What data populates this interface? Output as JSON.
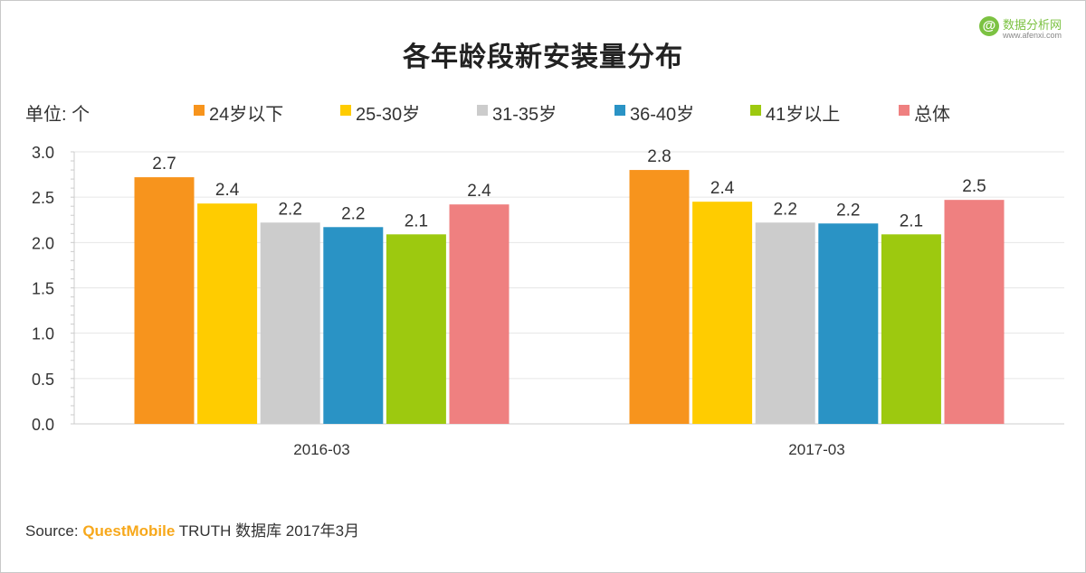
{
  "title": "各年龄段新安装量分布",
  "unit_label": "单位: 个",
  "watermark": {
    "logo_glyph": "@",
    "name": "数据分析网",
    "url": "www.afenxi.com"
  },
  "source": {
    "prefix": "Source:",
    "brand": "QuestMobile",
    "suffix": "TRUTH 数据库 2017年3月"
  },
  "chart_data": {
    "type": "bar",
    "title": "各年龄段新安装量分布",
    "xlabel": "",
    "ylabel": "",
    "categories": [
      "2016-03",
      "2017-03"
    ],
    "series": [
      {
        "name": "24岁以下",
        "color": "#f7941d",
        "values": [
          2.72,
          2.8
        ]
      },
      {
        "name": "25-30岁",
        "color": "#ffcc00",
        "values": [
          2.43,
          2.45
        ]
      },
      {
        "name": "31-35岁",
        "color": "#cccccc",
        "values": [
          2.22,
          2.22
        ]
      },
      {
        "name": "36-40岁",
        "color": "#2a93c5",
        "values": [
          2.17,
          2.21
        ]
      },
      {
        "name": "41岁以上",
        "color": "#9dc90f",
        "values": [
          2.09,
          2.09
        ]
      },
      {
        "name": "总体",
        "color": "#ef8080",
        "values": [
          2.42,
          2.47
        ]
      }
    ],
    "data_labels": [
      [
        "2.7",
        "2.8"
      ],
      [
        "2.4",
        "2.4"
      ],
      [
        "2.2",
        "2.2"
      ],
      [
        "2.2",
        "2.2"
      ],
      [
        "2.1",
        "2.1"
      ],
      [
        "2.4",
        "2.5"
      ]
    ],
    "ylim": [
      0,
      3.0
    ],
    "yticks": [
      0.0,
      0.5,
      1.0,
      1.5,
      2.0,
      2.5,
      3.0
    ],
    "ytick_labels": [
      "0.0",
      "0.5",
      "1.0",
      "1.5",
      "2.0",
      "2.5",
      "3.0"
    ],
    "grid": true,
    "legend_position": "top"
  }
}
